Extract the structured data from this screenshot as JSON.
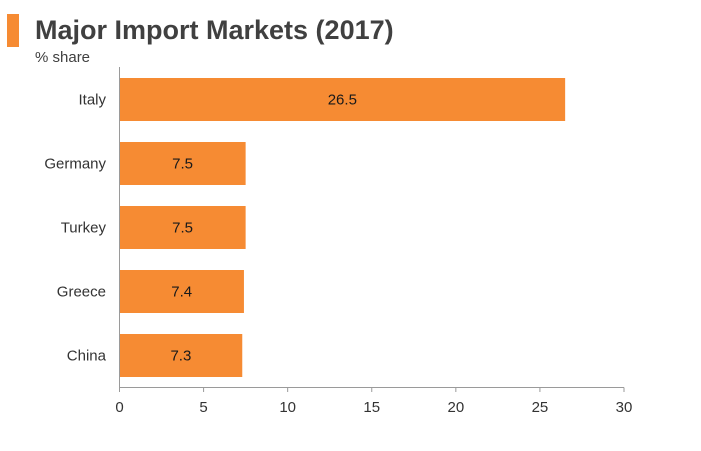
{
  "header": {
    "title": "Major Import Markets (2017)",
    "subtitle": "% share",
    "accent_color": "#F68B33"
  },
  "chart_data": {
    "type": "bar",
    "orientation": "horizontal",
    "title": "Major Import Markets (2017)",
    "subtitle": "% share",
    "categories": [
      "Italy",
      "Germany",
      "Turkey",
      "Greece",
      "China"
    ],
    "values": [
      26.5,
      7.5,
      7.5,
      7.4,
      7.3
    ],
    "data_labels": [
      "26.5",
      "7.5",
      "7.5",
      "7.4",
      "7.3"
    ],
    "xlim": [
      0,
      30
    ],
    "xticks": [
      0,
      5,
      10,
      15,
      20,
      25,
      30
    ],
    "xlabel": "",
    "ylabel": "",
    "grid": false,
    "legend": "none",
    "bar_color": "#F68B33"
  }
}
